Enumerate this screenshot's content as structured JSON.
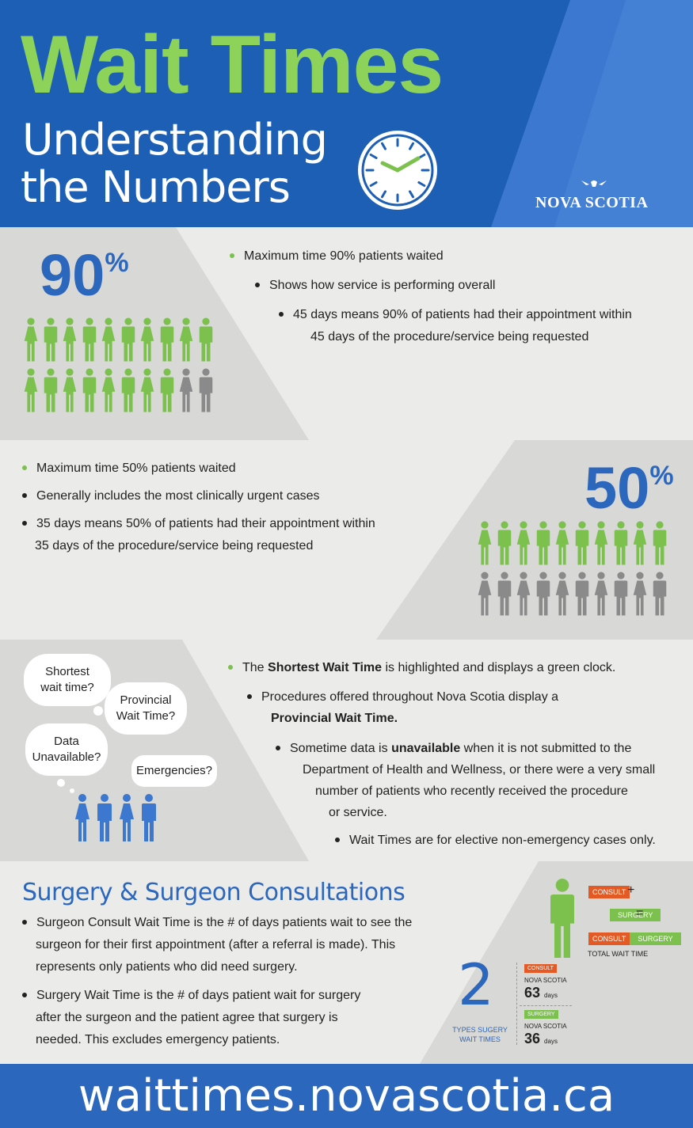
{
  "header": {
    "title": "Wait Times",
    "subtitle_line1": "Understanding",
    "subtitle_line2": "the Numbers",
    "logo": "NOVA SCOTIA"
  },
  "section90": {
    "stat_number": "90",
    "stat_unit": "%",
    "bullets": [
      "Maximum time 90% patients waited",
      "Shows how service is performing overall",
      "45 days means 90% of patients had their appointment within",
      "45 days of the procedure/service being requested"
    ]
  },
  "section50": {
    "stat_number": "50",
    "stat_unit": "%",
    "bullets": [
      "Maximum time 50% patients waited",
      "Generally includes the most clinically urgent cases",
      "35 days means 50% of patients had their appointment within",
      "35 days of the procedure/service being requested"
    ]
  },
  "section_info": {
    "bubbles": [
      "Shortest wait time?",
      "Provincial Wait Time?",
      "Data Unavailable?",
      "Emergencies?"
    ],
    "b1_pre": "The ",
    "b1_bold": "Shortest Wait Time",
    "b1_post": " is highlighted and displays a green clock.",
    "b2_line1": "Procedures offered throughout Nova Scotia display a",
    "b2_bold": "Provincial Wait Time.",
    "b3_pre": "Sometime data is ",
    "b3_bold": "unavailable",
    "b3_post": " when it is not submitted to the",
    "b3_line2": "Department of Health and Wellness, or there were a very small",
    "b3_line3": "number of patients who recently received the procedure",
    "b3_line4": "or service.",
    "b4": "Wait Times are for elective non-emergency cases only."
  },
  "surgery": {
    "title": "Surgery & Surgeon Consultations",
    "bullet1": [
      "Surgeon Consult Wait Time is the # of days patients wait to see the",
      "surgeon for their first appointment (after a referral is made). This",
      "represents only patients who did need surgery."
    ],
    "bullet2": [
      "Surgery Wait Time is the # of days patient wait for surgery",
      "after the surgeon and the patient agree that surgery is",
      "needed. This excludes emergency patients."
    ],
    "consult_label": "CONSULT",
    "surgery_label": "SURGERY",
    "plus": "+",
    "equals": "=",
    "total_label": "TOTAL WAIT TIME",
    "types_number": "2",
    "types_label_1": "TYPES SUGERY",
    "types_label_2": "WAIT TIMES",
    "consult_region": "NOVA SCOTIA",
    "consult_days": "63",
    "surgery_region": "NOVA SCOTIA",
    "surgery_days": "36",
    "days_unit": "days",
    "colors": {
      "consult": "#e35a24",
      "surgery": "#7cc04e"
    }
  },
  "footer": {
    "url": "waittimes.novascotia.ca"
  },
  "colors": {
    "blue": "#1c5fb5",
    "green": "#7cc04e",
    "title_green": "#8dd35a",
    "grey": "#8a8a8a"
  },
  "people": {
    "section90_green_count": 18,
    "section90_grey_count": 2,
    "section50_green_count": 10,
    "section50_grey_count": 10
  }
}
